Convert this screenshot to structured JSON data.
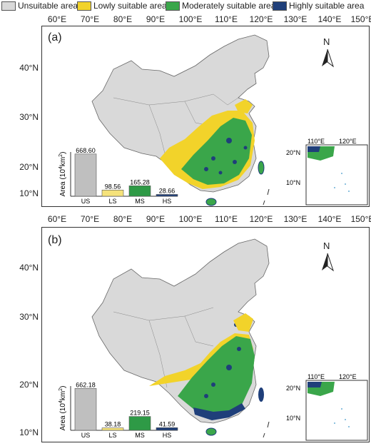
{
  "legend": {
    "items": [
      {
        "label": "Unsuitable area",
        "color": "#d9d9d9"
      },
      {
        "label": "Lowly suitable area",
        "color": "#f2d32a"
      },
      {
        "label": "Moderately suitable area",
        "color": "#3aa64a"
      },
      {
        "label": "Highly suitable area",
        "color": "#1f3f7a"
      }
    ]
  },
  "lon_ticks": [
    "60°E",
    "70°E",
    "80°E",
    "90°E",
    "100°E",
    "110°E",
    "120°E",
    "130°E",
    "140°E",
    "150°E"
  ],
  "lat_ticks": [
    "40°N",
    "30°N",
    "20°N",
    "10°N"
  ],
  "north": "N",
  "inset": {
    "lon": [
      "110°E",
      "120°E"
    ],
    "lat": [
      "20°N",
      "10°N"
    ]
  },
  "panels": [
    {
      "label": "(a)",
      "chart_data": {
        "type": "bar",
        "categories": [
          "US",
          "LS",
          "MS",
          "HS"
        ],
        "values": [
          668.6,
          98.56,
          165.28,
          28.66
        ],
        "value_labels": [
          "668.60",
          "98.56",
          "165.28",
          "28.66"
        ],
        "ylabel_main": "Area (10",
        "ylabel_sup": "4",
        "ylabel_unit": "km",
        "ylabel_sup2": "2",
        "ylabel_end": ")",
        "colors": [
          "#bfbfbf",
          "#f5e27a",
          "#2e9a46",
          "#1f3f7a"
        ]
      }
    },
    {
      "label": "(b)",
      "chart_data": {
        "type": "bar",
        "categories": [
          "US",
          "LS",
          "MS",
          "HS"
        ],
        "values": [
          662.18,
          38.18,
          219.15,
          41.59
        ],
        "value_labels": [
          "662.18",
          "38.18",
          "219.15",
          "41.59"
        ],
        "ylabel_main": "Area (10",
        "ylabel_sup": "4",
        "ylabel_unit": "km",
        "ylabel_sup2": "2",
        "ylabel_end": ")",
        "colors": [
          "#bfbfbf",
          "#f5e27a",
          "#2e9a46",
          "#1f3f7a"
        ]
      }
    }
  ]
}
